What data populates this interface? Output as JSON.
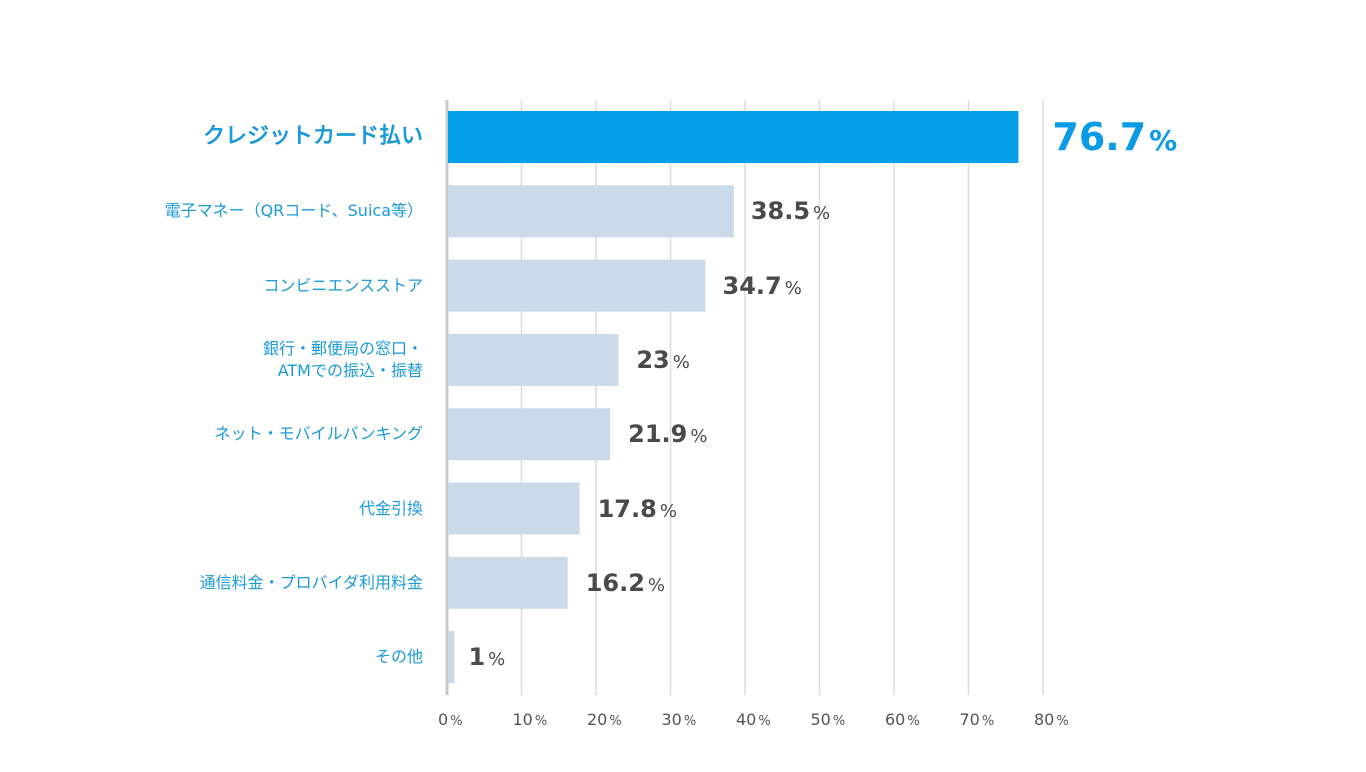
{
  "chart_data": {
    "type": "bar",
    "orientation": "horizontal",
    "title": "",
    "xlabel": "",
    "ylabel": "",
    "categories": [
      "クレジットカード払い",
      "電子マネー（QRコード、Suica等）",
      "コンビニエンスストア",
      "銀行・郵便局の窓口・\nATMでの振込・振替",
      "ネット・モバイルバンキング",
      "代金引換",
      "通信料金・プロバイダ利用料金",
      "その他"
    ],
    "values": [
      76.7,
      38.5,
      34.7,
      23,
      21.9,
      17.8,
      16.2,
      1
    ],
    "value_labels": [
      "76.7",
      "38.5",
      "34.7",
      "23",
      "21.9",
      "17.8",
      "16.2",
      "1"
    ],
    "value_unit": "%",
    "highlight_index": 0,
    "xlim": [
      0,
      80
    ],
    "xticks": [
      0,
      10,
      20,
      30,
      40,
      50,
      60,
      70,
      80
    ],
    "xtick_labels": [
      "0",
      "10",
      "20",
      "30",
      "40",
      "50",
      "60",
      "70",
      "80"
    ],
    "tick_unit": "%",
    "grid": true,
    "legend": "none",
    "colors": {
      "highlight_bar": "#039fe8",
      "bar": "#cbdae8",
      "category_text": "#1a9ad9",
      "value_text": "#4a4a4a",
      "highlight_value_text": "#0b9be6",
      "grid": "#dcdcdc",
      "axis": "#c8c8c8"
    }
  }
}
